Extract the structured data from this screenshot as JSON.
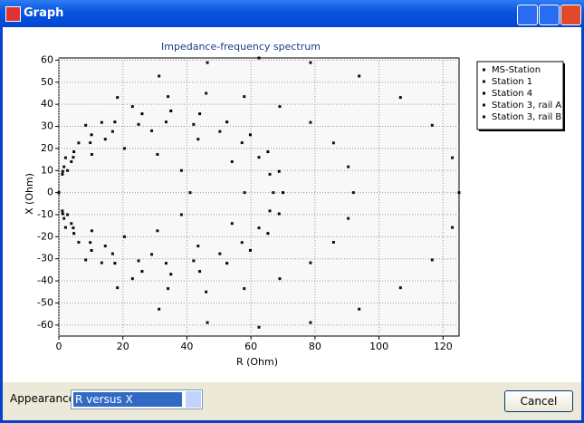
{
  "window": {
    "title": "Graph"
  },
  "chart_data": {
    "type": "scatter",
    "title": "Impedance-frequency spectrum",
    "x_label": "R (Ohm)",
    "y_label": "X (Ohm)",
    "xlim": [
      0,
      125
    ],
    "ylim": [
      -65,
      61
    ],
    "xticks": [
      0,
      20,
      40,
      60,
      80,
      100,
      120
    ],
    "yticks": [
      -60,
      -50,
      -40,
      -30,
      -20,
      -10,
      0,
      10,
      20,
      30,
      40,
      50,
      60
    ],
    "grid": true,
    "legend": "right",
    "series": [
      {
        "name": "MS-Station",
        "color": "#1a0a0a",
        "x": [
          125,
          122.9,
          116.6,
          106.7,
          93.8,
          78.6,
          62.5,
          46.4,
          31.3,
          18.3,
          8.4,
          2.1,
          0,
          2.1,
          8.4,
          18.3,
          31.3,
          46.4,
          62.5,
          78.6,
          93.8,
          106.7,
          116.6,
          122.9
        ],
        "y": [
          0,
          15.8,
          30.5,
          43.1,
          52.8,
          58.9,
          61,
          58.9,
          52.8,
          43.1,
          30.5,
          15.8,
          0,
          -15.8,
          -30.5,
          -43.1,
          -52.8,
          -58.9,
          -61,
          -58.9,
          -52.8,
          -43.1,
          -30.5,
          -15.8
        ]
      },
      {
        "name": "Station 1",
        "color": "#2a0606",
        "x": [
          92,
          90.4,
          85.8,
          78.6,
          69,
          57.9,
          46,
          34.1,
          23,
          13.4,
          6.2,
          1.6,
          0,
          1.6,
          6.2,
          13.4,
          23,
          34.1,
          46,
          57.9,
          69,
          78.6,
          85.8,
          90.4
        ],
        "y": [
          0,
          11.7,
          22.5,
          31.8,
          39,
          43.5,
          45,
          43.5,
          39,
          31.8,
          22.5,
          11.7,
          0,
          -11.7,
          -22.5,
          -31.8,
          -39,
          -43.5,
          -45,
          -43.5,
          -39,
          -31.8,
          -22.5,
          -11.7
        ]
      },
      {
        "name": "Station 4",
        "color": "#000000",
        "x": [
          70,
          68.8,
          65.3,
          59.8,
          52.5,
          44,
          35,
          26,
          17.5,
          10.2,
          4.7,
          1.2,
          0,
          1.2,
          4.7,
          10.2,
          17.5,
          26,
          35,
          44,
          52.5,
          59.8,
          65.3,
          68.8
        ],
        "y": [
          0,
          9.6,
          18.5,
          26.2,
          32,
          35.7,
          37,
          35.7,
          32,
          26.2,
          18.5,
          9.6,
          0,
          -9.6,
          -18.5,
          -26.2,
          -32,
          -35.7,
          -37,
          -35.7,
          -32,
          -26.2,
          -18.5,
          -9.6
        ]
      },
      {
        "name": "Station 3, rail A",
        "color": "#101010",
        "x": [
          58,
          54.1,
          43.5,
          29,
          14.5,
          3.9,
          0,
          3.9,
          14.5,
          29,
          43.5,
          54.1,
          41,
          38.3,
          30.8,
          20.5,
          10.3,
          2.7,
          0,
          2.7,
          10.3,
          20.5,
          30.8,
          38.3
        ],
        "y": [
          0,
          14,
          24.2,
          28,
          24.2,
          14,
          0,
          -14,
          -24.2,
          -28,
          -24.2,
          -14,
          0,
          10,
          17.3,
          20,
          17.3,
          10,
          0,
          -10,
          -17.3,
          -20,
          -17.3,
          -10
        ]
      },
      {
        "name": "Station 3, rail B",
        "color": "#200808",
        "x": [
          67,
          65.9,
          62.5,
          57.2,
          50.3,
          42.1,
          33.5,
          24.9,
          16.8,
          9.8,
          4.5,
          1.1,
          0,
          1.1,
          4.5,
          9.8,
          16.8,
          24.9,
          33.5,
          42.1,
          50.3,
          57.2,
          62.5,
          65.9
        ],
        "y": [
          0,
          8.3,
          16,
          22.6,
          27.7,
          30.9,
          32,
          30.9,
          27.7,
          22.6,
          16,
          8.3,
          0,
          -8.3,
          -16,
          -22.6,
          -27.7,
          -30.9,
          -32,
          -30.9,
          -27.7,
          -22.6,
          -16,
          -8.3
        ]
      }
    ]
  },
  "controls": {
    "appearance_label": "Appearance",
    "appearance_value": "R versus X",
    "cancel": "Cancel"
  }
}
